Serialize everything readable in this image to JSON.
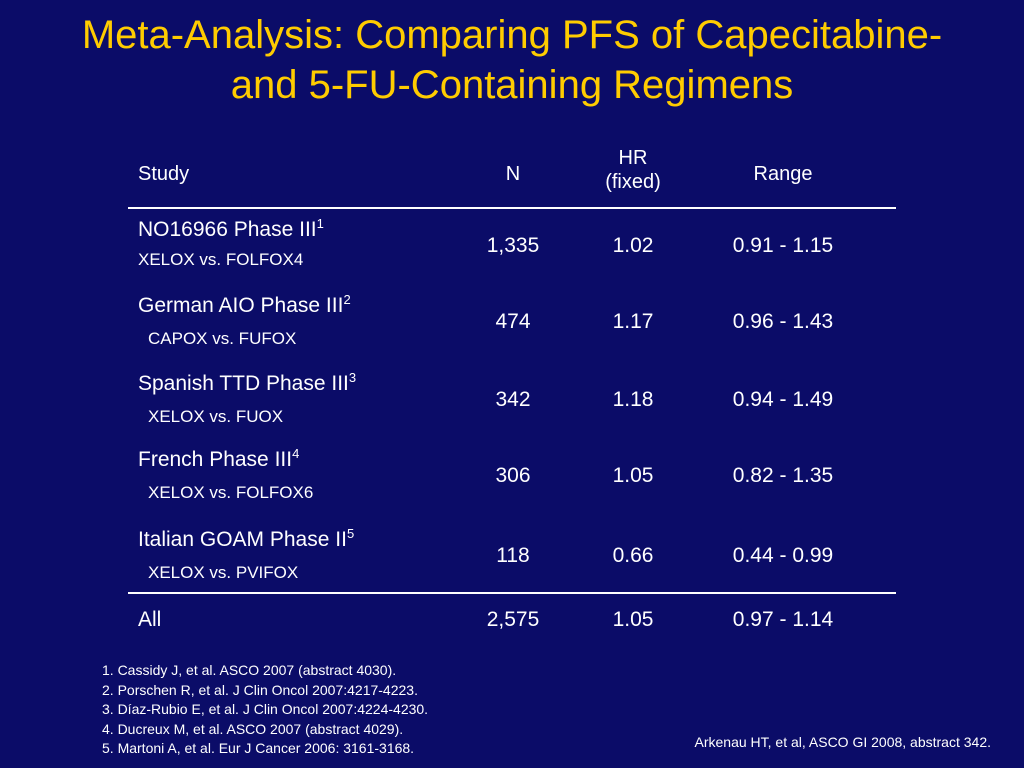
{
  "title": {
    "line1": "Meta-Analysis: Comparing PFS of Capecitabine-",
    "line2": "and 5-FU-Containing Regimens"
  },
  "table": {
    "headers": {
      "study": "Study",
      "n": "N",
      "hr_line1": "HR",
      "hr_line2": "(fixed)",
      "range": "Range"
    },
    "rows": [
      {
        "study": "NO16966 Phase III",
        "ref": "1",
        "regimen": "XELOX vs. FOLFOX4",
        "n": "1,335",
        "hr": "1.02",
        "range": "0.91 - 1.15"
      },
      {
        "study": "German AIO Phase III",
        "ref": "2",
        "regimen": "CAPOX vs. FUFOX",
        "n": "474",
        "hr": "1.17",
        "range": "0.96 - 1.43"
      },
      {
        "study": "Spanish TTD Phase III",
        "ref": "3",
        "regimen": "XELOX vs. FUOX",
        "n": "342",
        "hr": "1.18",
        "range": "0.94 - 1.49"
      },
      {
        "study": "French Phase III",
        "ref": "4",
        "regimen": "XELOX vs. FOLFOX6",
        "n": "306",
        "hr": "1.05",
        "range": "0.82 - 1.35"
      },
      {
        "study": "Italian GOAM Phase II",
        "ref": "5",
        "regimen": "XELOX vs. PVIFOX",
        "n": "118",
        "hr": "0.66",
        "range": "0.44 - 0.99"
      }
    ],
    "total": {
      "study": "All",
      "n": "2,575",
      "hr": "1.05",
      "range": "0.97 - 1.14"
    }
  },
  "references": [
    "1. Cassidy J, et al. ASCO 2007 (abstract 4030).",
    "2. Porschen R, et al. J Clin Oncol 2007:4217-4223.",
    "3. Díaz-Rubio E, et al. J Clin Oncol 2007:4224-4230.",
    "4. Ducreux M, et al. ASCO 2007 (abstract 4029).",
    "5. Martoni A, et al. Eur J Cancer 2006: 3161-3168."
  ],
  "credit": "Arkenau  HT, et al, ASCO GI 2008, abstract 342.",
  "colors": {
    "background": "#0b0c68",
    "title": "#ffcc00",
    "text": "#ffffff"
  }
}
